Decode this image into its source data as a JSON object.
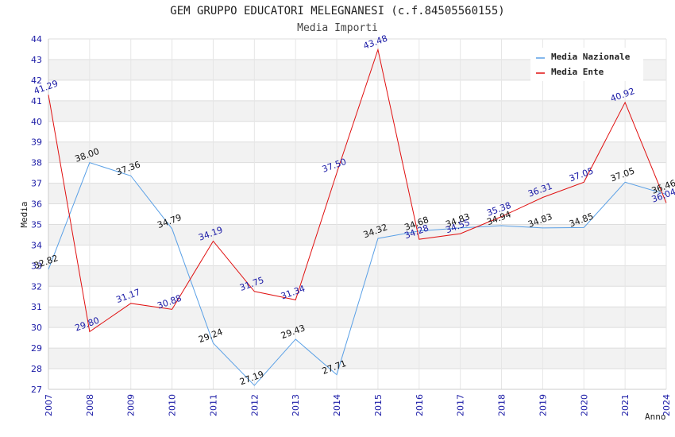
{
  "chart_data": {
    "type": "line",
    "title": "GEM GRUPPO EDUCATORI MELEGNANESI (c.f.84505560155)",
    "subtitle": "Media Importi",
    "xlabel": "Anno",
    "ylabel": "Media",
    "ylim": [
      27,
      44
    ],
    "grid": true,
    "legend_position": "top-right",
    "x": [
      "2007",
      "2008",
      "2009",
      "2010",
      "2011",
      "2012",
      "2013",
      "2014",
      "2015",
      "2016",
      "2017",
      "2018",
      "2019",
      "2020",
      "2021",
      "2024"
    ],
    "x_positions": [
      2007,
      2008,
      2009,
      2010,
      2011,
      2012,
      2013,
      2014,
      2015,
      2016,
      2017,
      2018,
      2019,
      2020,
      2021,
      2022
    ],
    "yticks": [
      27,
      28,
      29,
      30,
      31,
      32,
      33,
      34,
      35,
      36,
      37,
      38,
      39,
      40,
      41,
      42,
      43,
      44
    ],
    "series": [
      {
        "name": "Media Nazionale",
        "color": "#5aa0e6",
        "label_color": "#111111",
        "values": [
          32.82,
          38.0,
          37.36,
          34.79,
          29.24,
          27.19,
          29.43,
          27.71,
          34.32,
          34.68,
          34.83,
          34.94,
          34.83,
          34.85,
          37.05,
          36.46
        ],
        "labels": [
          "32.82",
          "38.00",
          "37.36",
          "34.79",
          "29.24",
          "27.19",
          "29.43",
          "27.71",
          "34.32",
          "34.68",
          "34.83",
          "34.94",
          "34.83",
          "34.85",
          "37.05",
          "36.46"
        ]
      },
      {
        "name": "Media Ente",
        "color": "#e01010",
        "label_color": "#1a1aa6",
        "values": [
          41.29,
          29.8,
          31.17,
          30.88,
          34.19,
          31.75,
          31.34,
          37.5,
          43.48,
          34.28,
          34.55,
          35.38,
          36.31,
          37.05,
          40.92,
          36.04
        ],
        "labels": [
          "41.29",
          "29.80",
          "31.17",
          "30.88",
          "34.19",
          "31.75",
          "31.34",
          "37.50",
          "43.48",
          "34.28",
          "34.55",
          "35.38",
          "36.31",
          "37.05",
          "40.92",
          "36.04"
        ]
      }
    ]
  }
}
